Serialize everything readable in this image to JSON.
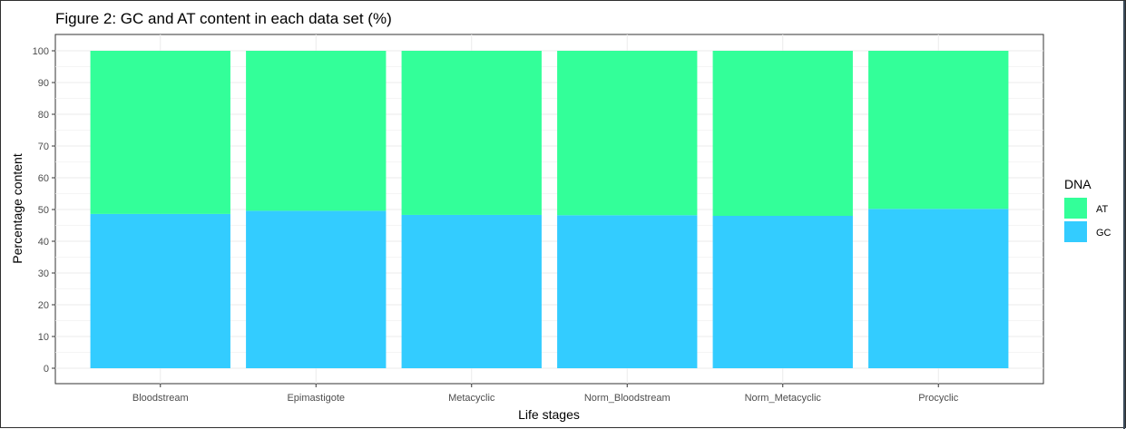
{
  "title": "Figure 2: GC and AT content in each data set (%)",
  "chart_data": {
    "type": "bar",
    "stacked": true,
    "categories": [
      "Bloodstream",
      "Epimastigote",
      "Metacyclic",
      "Norm_Bloodstream",
      "Norm_Metacyclic",
      "Procyclic"
    ],
    "series": [
      {
        "name": "GC",
        "values": [
          48.6,
          49.6,
          48.3,
          48.2,
          48.0,
          50.2
        ],
        "color": "#33CCFF"
      },
      {
        "name": "AT",
        "values": [
          51.4,
          50.4,
          51.7,
          51.8,
          52.0,
          49.8
        ],
        "color": "#33FF99"
      }
    ],
    "xlabel": "Life stages",
    "ylabel": "Percentage content",
    "ylim": [
      0,
      100
    ],
    "yticks": [
      0,
      10,
      20,
      30,
      40,
      50,
      60,
      70,
      80,
      90,
      100
    ],
    "grid": true,
    "legend": {
      "title": "DNA",
      "placement": "right",
      "entries": [
        {
          "label": "AT",
          "color": "#33FF99"
        },
        {
          "label": "GC",
          "color": "#33CCFF"
        }
      ]
    }
  }
}
